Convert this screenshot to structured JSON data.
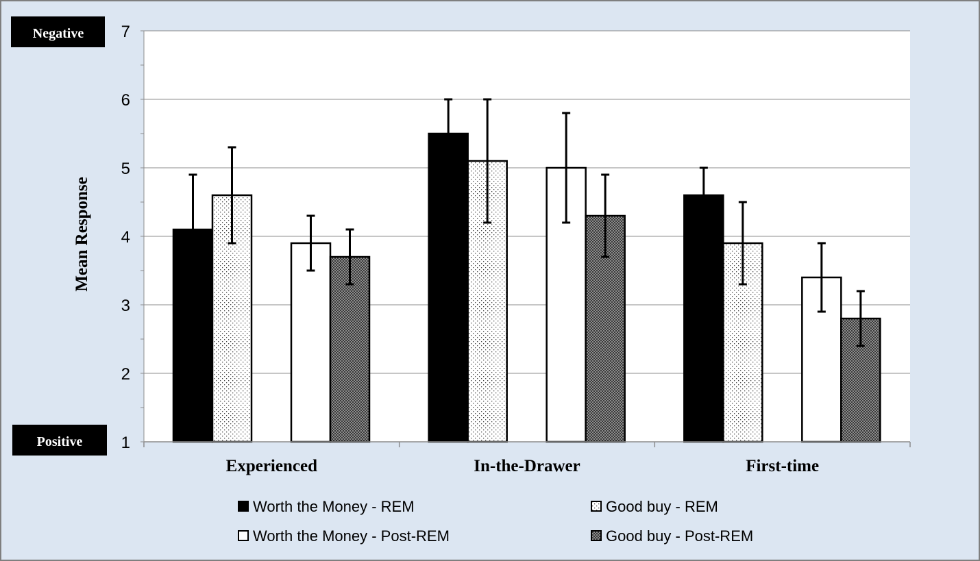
{
  "chart_data": {
    "type": "bar",
    "title": "",
    "xlabel": "",
    "ylabel": "Mean Response",
    "ylim": [
      1,
      7
    ],
    "yticks": [
      1,
      2,
      3,
      4,
      5,
      6,
      7
    ],
    "grid": true,
    "legend_position": "bottom",
    "annotations": {
      "top": "Negative",
      "bottom": "Positive"
    },
    "categories": [
      "Experienced",
      "In-the-Drawer",
      "First-time"
    ],
    "series": [
      {
        "name": "Worth the Money - REM",
        "fill": "solid",
        "color": "#000000",
        "values": [
          4.1,
          5.5,
          4.6
        ],
        "errors": [
          0.8,
          0.5,
          0.4
        ]
      },
      {
        "name": "Good buy - REM",
        "fill": "dots",
        "color": "#000000",
        "values": [
          4.6,
          5.1,
          3.9
        ],
        "errors": [
          0.7,
          0.9,
          0.6
        ]
      },
      {
        "name": "Worth the Money - Post-REM",
        "fill": "white",
        "color": "#000000",
        "values": [
          3.9,
          5.0,
          3.4
        ],
        "errors": [
          0.4,
          0.8,
          0.5
        ]
      },
      {
        "name": "Good buy - Post-REM",
        "fill": "dense",
        "color": "#000000",
        "values": [
          3.7,
          4.3,
          2.8
        ],
        "errors": [
          0.4,
          0.6,
          0.4
        ]
      }
    ]
  }
}
